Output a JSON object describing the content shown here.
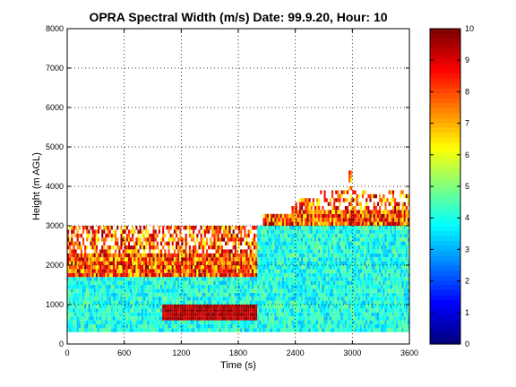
{
  "chart_data": {
    "type": "heatmap",
    "title": "OPRA Spectral Width (m/s)  Date: 99.9.20, Hour: 10",
    "xlabel": "Time (s)",
    "ylabel": "Height (m AGL)",
    "xlim": [
      0,
      3600
    ],
    "ylim": [
      0,
      8000
    ],
    "x_ticks": [
      0,
      600,
      1200,
      1800,
      2400,
      3000,
      3600
    ],
    "y_ticks": [
      0,
      1000,
      2000,
      3000,
      4000,
      5000,
      6000,
      7000,
      8000
    ],
    "grid": true,
    "grid_style": "dotted",
    "colormap": "jet",
    "colorbar": {
      "position": "right",
      "range": [
        0,
        10
      ],
      "ticks": [
        0,
        1,
        2,
        3,
        4,
        5,
        6,
        7,
        8,
        9,
        10
      ]
    },
    "data_extent": {
      "x_start": 0,
      "x_end": 3600,
      "y_start": 300,
      "y_end_profile": [
        [
          0,
          3000
        ],
        [
          2000,
          3000
        ],
        [
          2050,
          3300
        ],
        [
          2300,
          3300
        ],
        [
          2600,
          3700
        ],
        [
          2900,
          3900
        ],
        [
          2950,
          4500
        ],
        [
          3100,
          3900
        ],
        [
          3300,
          3800
        ],
        [
          3600,
          3900
        ]
      ]
    },
    "values_description_zones": [
      {
        "x": [
          0,
          2000
        ],
        "y": [
          300,
          1700
        ],
        "value_range": [
          3,
          5
        ]
      },
      {
        "x": [
          0,
          2000
        ],
        "y": [
          1700,
          3000
        ],
        "value_range": [
          6,
          10
        ]
      },
      {
        "x": [
          1000,
          2000
        ],
        "y": [
          600,
          900
        ],
        "value_range": [
          9,
          10
        ]
      },
      {
        "x": [
          2000,
          3600
        ],
        "y": [
          300,
          3000
        ],
        "value_range": [
          3,
          5
        ]
      },
      {
        "x": [
          2000,
          3600
        ],
        "y": [
          3000,
          4500
        ],
        "value_range": [
          6,
          10
        ]
      }
    ]
  },
  "colors": {
    "background": "#ffffff",
    "axes": "#000000",
    "grid": "#000000"
  }
}
